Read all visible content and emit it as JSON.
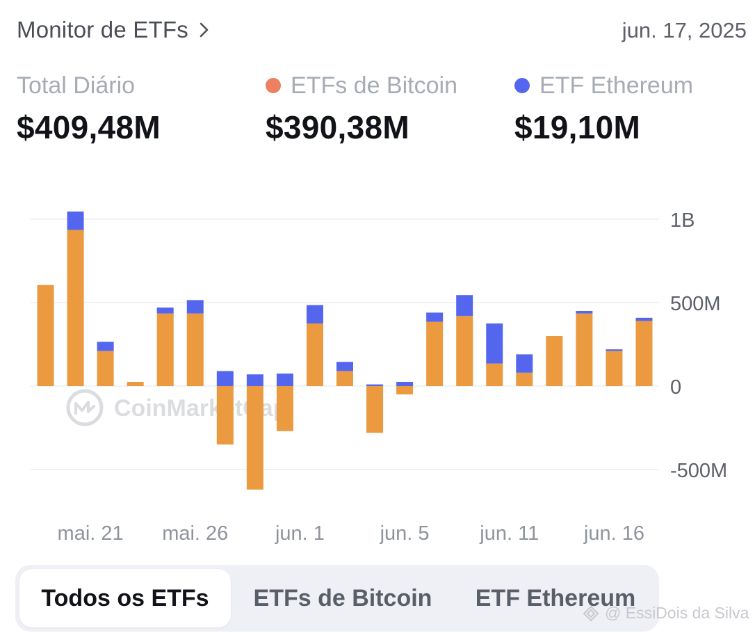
{
  "header": {
    "title": "Monitor de ETFs",
    "date": "jun. 17, 2025"
  },
  "stats": [
    {
      "label": "Total Diário",
      "value": "$409,48M",
      "dot_color": ""
    },
    {
      "label": "ETFs de Bitcoin",
      "value": "$390,38M",
      "dot_color": "#ec8060"
    },
    {
      "label": "ETF Ethereum",
      "value": "$19,10M",
      "dot_color": "#5566ee"
    }
  ],
  "chart_data": {
    "type": "bar",
    "stacked": true,
    "y_ticks": [
      {
        "value": 1000,
        "label": "1B"
      },
      {
        "value": 500,
        "label": "500M"
      },
      {
        "value": 0,
        "label": "0"
      },
      {
        "value": -500,
        "label": "-500M"
      }
    ],
    "ylim": [
      -700,
      1100
    ],
    "x_tick_labels": [
      {
        "index": 1.5,
        "label": "mai. 21"
      },
      {
        "index": 5,
        "label": "mai. 26"
      },
      {
        "index": 8.5,
        "label": "jun. 1"
      },
      {
        "index": 12,
        "label": "jun. 5"
      },
      {
        "index": 15.5,
        "label": "jun. 11"
      },
      {
        "index": 19,
        "label": "jun. 16"
      }
    ],
    "series": [
      {
        "name": "ETFs de Bitcoin",
        "color": "#eb9a40",
        "values": [
          605,
          935,
          210,
          25,
          435,
          435,
          -350,
          -620,
          -270,
          375,
          90,
          -280,
          -50,
          385,
          420,
          135,
          80,
          300,
          435,
          210,
          390
        ]
      },
      {
        "name": "ETF Ethereum",
        "color": "#5566ee",
        "values": [
          0,
          110,
          55,
          0,
          35,
          80,
          90,
          70,
          75,
          110,
          55,
          10,
          25,
          55,
          125,
          240,
          110,
          0,
          15,
          10,
          19
        ]
      }
    ],
    "grid": true,
    "legend": "none"
  },
  "watermark": {
    "text": "CoinMarketCap"
  },
  "tabs": [
    {
      "label": "Todos os ETFs",
      "active": true
    },
    {
      "label": "ETFs de Bitcoin",
      "active": false
    },
    {
      "label": "ETF Ethereum",
      "active": false
    }
  ],
  "credit": {
    "text": "@ EssiDois da Silva"
  },
  "icons": {
    "title_link": "chevron-right-icon",
    "credit": "square-diamond-icon",
    "watermark": "coinmarketcap-logo-icon"
  }
}
